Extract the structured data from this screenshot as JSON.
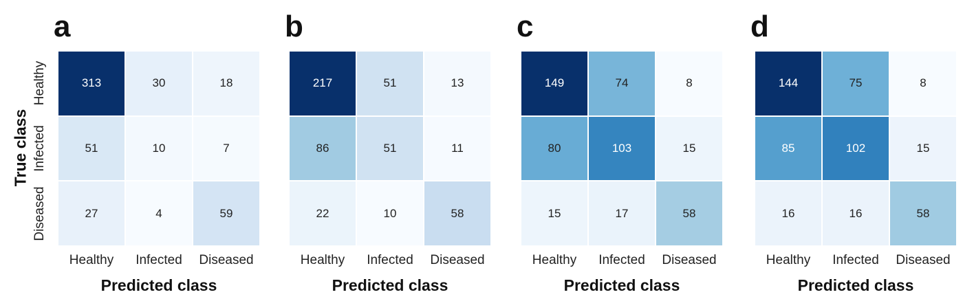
{
  "chart_data": [
    {
      "type": "heatmap",
      "panel_label": "a",
      "xlabel": "Predicted class",
      "ylabel": "True class",
      "x_categories": [
        "Healthy",
        "Infected",
        "Diseased"
      ],
      "y_categories": [
        "Healthy",
        "Infected",
        "Diseased"
      ],
      "values": [
        [
          313,
          30,
          18
        ],
        [
          51,
          10,
          7
        ],
        [
          27,
          4,
          59
        ]
      ],
      "colormap": "Blues"
    },
    {
      "type": "heatmap",
      "panel_label": "b",
      "xlabel": "Predicted class",
      "ylabel": "",
      "x_categories": [
        "Healthy",
        "Infected",
        "Diseased"
      ],
      "y_categories": [
        "Healthy",
        "Infected",
        "Diseased"
      ],
      "values": [
        [
          217,
          51,
          13
        ],
        [
          86,
          51,
          11
        ],
        [
          22,
          10,
          58
        ]
      ],
      "colormap": "Blues"
    },
    {
      "type": "heatmap",
      "panel_label": "c",
      "xlabel": "Predicted class",
      "ylabel": "",
      "x_categories": [
        "Healthy",
        "Infected",
        "Diseased"
      ],
      "y_categories": [
        "Healthy",
        "Infected",
        "Diseased"
      ],
      "values": [
        [
          149,
          74,
          8
        ],
        [
          80,
          103,
          15
        ],
        [
          15,
          17,
          58
        ]
      ],
      "colormap": "Blues"
    },
    {
      "type": "heatmap",
      "panel_label": "d",
      "xlabel": "Predicted class",
      "ylabel": "",
      "x_categories": [
        "Healthy",
        "Infected",
        "Diseased"
      ],
      "y_categories": [
        "Healthy",
        "Infected",
        "Diseased"
      ],
      "values": [
        [
          144,
          75,
          8
        ],
        [
          85,
          102,
          15
        ],
        [
          16,
          16,
          58
        ]
      ],
      "colormap": "Blues"
    }
  ]
}
